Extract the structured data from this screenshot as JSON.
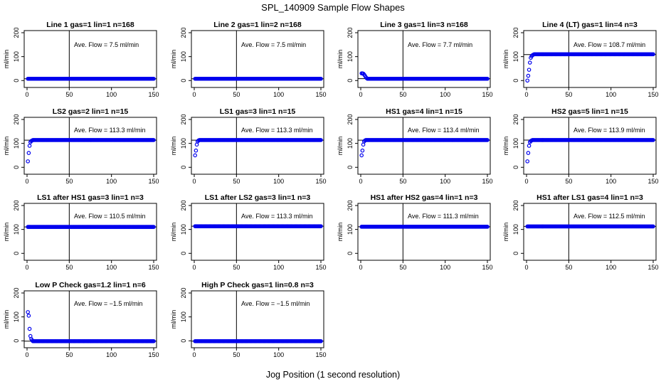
{
  "title": "SPL_140909  Sample Flow Shapes",
  "xlabel": "Jog Position (1 second resolution)",
  "colors": {
    "points": "#0000ee",
    "axis": "#000000"
  },
  "chart_data": [
    {
      "type": "scatter",
      "title": "Line 1 gas=1 lin=1 n=168",
      "ylabel": "ml/min",
      "annotation": "Ave. Flow =  7.5  ml/min",
      "xlim": [
        0,
        150
      ],
      "ylim": [
        -20,
        200
      ],
      "xticks": [
        0,
        50,
        100,
        150
      ],
      "yticks": [
        0,
        100,
        200
      ],
      "vline": 50,
      "hline": 7.5,
      "start": [],
      "plateau": 7.5
    },
    {
      "type": "scatter",
      "title": "Line 2 gas=1 lin=2 n=168",
      "ylabel": "ml/min",
      "annotation": "Ave. Flow =  7.5  ml/min",
      "xlim": [
        0,
        150
      ],
      "ylim": [
        -20,
        200
      ],
      "xticks": [
        0,
        50,
        100,
        150
      ],
      "yticks": [
        0,
        100,
        200
      ],
      "vline": 50,
      "hline": 7.5,
      "start": [],
      "plateau": 7.5
    },
    {
      "type": "scatter",
      "title": "Line 3 gas=1 lin=3 n=168",
      "ylabel": "ml/min",
      "annotation": "Ave. Flow =  7.7  ml/min",
      "xlim": [
        0,
        150
      ],
      "ylim": [
        -20,
        200
      ],
      "xticks": [
        0,
        50,
        100,
        150
      ],
      "yticks": [
        0,
        100,
        200
      ],
      "vline": 50,
      "hline": 7.7,
      "start": [
        30,
        30,
        29,
        25,
        20,
        14,
        10
      ],
      "plateau": 7.5
    },
    {
      "type": "scatter",
      "title": "Line 4 (LT) gas=1 lin=4 n=3",
      "ylabel": "ml/min",
      "annotation": "Ave. Flow =  108.7  ml/min",
      "xlim": [
        0,
        150
      ],
      "ylim": [
        -20,
        200
      ],
      "xticks": [
        0,
        50,
        100,
        150
      ],
      "yticks": [
        0,
        100,
        200
      ],
      "vline": 50,
      "hline": 108.7,
      "start": [
        0,
        20,
        45,
        75,
        95,
        102,
        106,
        108
      ],
      "plateau": 110
    },
    {
      "type": "scatter",
      "title": "LS2 gas=2 lin=1 n=15",
      "ylabel": "ml/min",
      "annotation": "Ave. Flow =  113.3  ml/min",
      "xlim": [
        0,
        150
      ],
      "ylim": [
        -20,
        200
      ],
      "xticks": [
        0,
        50,
        100,
        150
      ],
      "yticks": [
        0,
        100,
        200
      ],
      "vline": 50,
      "hline": 113.3,
      "start": [
        25,
        60,
        90,
        105,
        110,
        112
      ],
      "plateau": 114
    },
    {
      "type": "scatter",
      "title": "LS1 gas=3 lin=1 n=15",
      "ylabel": "ml/min",
      "annotation": "Ave. Flow =  113.3  ml/min",
      "xlim": [
        0,
        150
      ],
      "ylim": [
        -20,
        200
      ],
      "xticks": [
        0,
        50,
        100,
        150
      ],
      "yticks": [
        0,
        100,
        200
      ],
      "vline": 50,
      "hline": 113.3,
      "start": [
        50,
        70,
        95,
        108,
        112
      ],
      "plateau": 114
    },
    {
      "type": "scatter",
      "title": "HS1 gas=4 lin=1 n=15",
      "ylabel": "ml/min",
      "annotation": "Ave. Flow =  113.4  ml/min",
      "xlim": [
        0,
        150
      ],
      "ylim": [
        -20,
        200
      ],
      "xticks": [
        0,
        50,
        100,
        150
      ],
      "yticks": [
        0,
        100,
        200
      ],
      "vline": 50,
      "hline": 113.4,
      "start": [
        50,
        70,
        95,
        108,
        112
      ],
      "plateau": 114
    },
    {
      "type": "scatter",
      "title": "HS2 gas=5 lin=1 n=15",
      "ylabel": "ml/min",
      "annotation": "Ave. Flow =  113.9  ml/min",
      "xlim": [
        0,
        150
      ],
      "ylim": [
        -20,
        200
      ],
      "xticks": [
        0,
        50,
        100,
        150
      ],
      "yticks": [
        0,
        100,
        200
      ],
      "vline": 50,
      "hline": 113.9,
      "start": [
        25,
        60,
        90,
        105,
        110,
        112
      ],
      "plateau": 114
    },
    {
      "type": "scatter",
      "title": "LS1 after HS1 gas=3 lin=1 n=3",
      "ylabel": "ml/min",
      "annotation": "Ave. Flow =  110.5  ml/min",
      "xlim": [
        0,
        150
      ],
      "ylim": [
        -20,
        200
      ],
      "xticks": [
        0,
        50,
        100,
        150
      ],
      "yticks": [
        0,
        100,
        200
      ],
      "vline": 50,
      "hline": 110.5,
      "start": [],
      "plateau": 110.5
    },
    {
      "type": "scatter",
      "title": "LS1 after LS2 gas=3 lin=1 n=3",
      "ylabel": "ml/min",
      "annotation": "Ave. Flow =  113.3  ml/min",
      "xlim": [
        0,
        150
      ],
      "ylim": [
        -20,
        200
      ],
      "xticks": [
        0,
        50,
        100,
        150
      ],
      "yticks": [
        0,
        100,
        200
      ],
      "vline": 50,
      "hline": 113.3,
      "start": [],
      "plateau": 113.3
    },
    {
      "type": "scatter",
      "title": "HS1 after HS2 gas=4 lin=1 n=3",
      "ylabel": "ml/min",
      "annotation": "Ave. Flow =  111.3  ml/min",
      "xlim": [
        0,
        150
      ],
      "ylim": [
        -20,
        200
      ],
      "xticks": [
        0,
        50,
        100,
        150
      ],
      "yticks": [
        0,
        100,
        200
      ],
      "vline": 50,
      "hline": 111.3,
      "start": [],
      "plateau": 111.3
    },
    {
      "type": "scatter",
      "title": "HS1 after LS1 gas=4 lin=1 n=3",
      "ylabel": "ml/min",
      "annotation": "Ave. Flow =  112.5  ml/min",
      "xlim": [
        0,
        150
      ],
      "ylim": [
        -20,
        200
      ],
      "xticks": [
        0,
        50,
        100,
        150
      ],
      "yticks": [
        0,
        100,
        200
      ],
      "vline": 50,
      "hline": 112.5,
      "start": [],
      "plateau": 112.5
    },
    {
      "type": "scatter",
      "title": "Low P Check gas=1.2 lin=1 n=6",
      "ylabel": "ml/min",
      "annotation": "Ave. Flow =  −1.5  ml/min",
      "xlim": [
        0,
        150
      ],
      "ylim": [
        -20,
        200
      ],
      "xticks": [
        0,
        50,
        100,
        150
      ],
      "yticks": [
        0,
        100,
        200
      ],
      "vline": 50,
      "hline": -1.5,
      "start": [
        120,
        105,
        50,
        20,
        8,
        2
      ],
      "plateau": -1.5
    },
    {
      "type": "scatter",
      "title": "High P Check gas=1 lin=0.8 n=3",
      "ylabel": "ml/min",
      "annotation": "Ave. Flow =  −1.5  ml/min",
      "xlim": [
        0,
        150
      ],
      "ylim": [
        -20,
        200
      ],
      "xticks": [
        0,
        50,
        100,
        150
      ],
      "yticks": [
        0,
        100,
        200
      ],
      "vline": 50,
      "hline": -1.5,
      "start": [],
      "plateau": -1.5
    }
  ]
}
